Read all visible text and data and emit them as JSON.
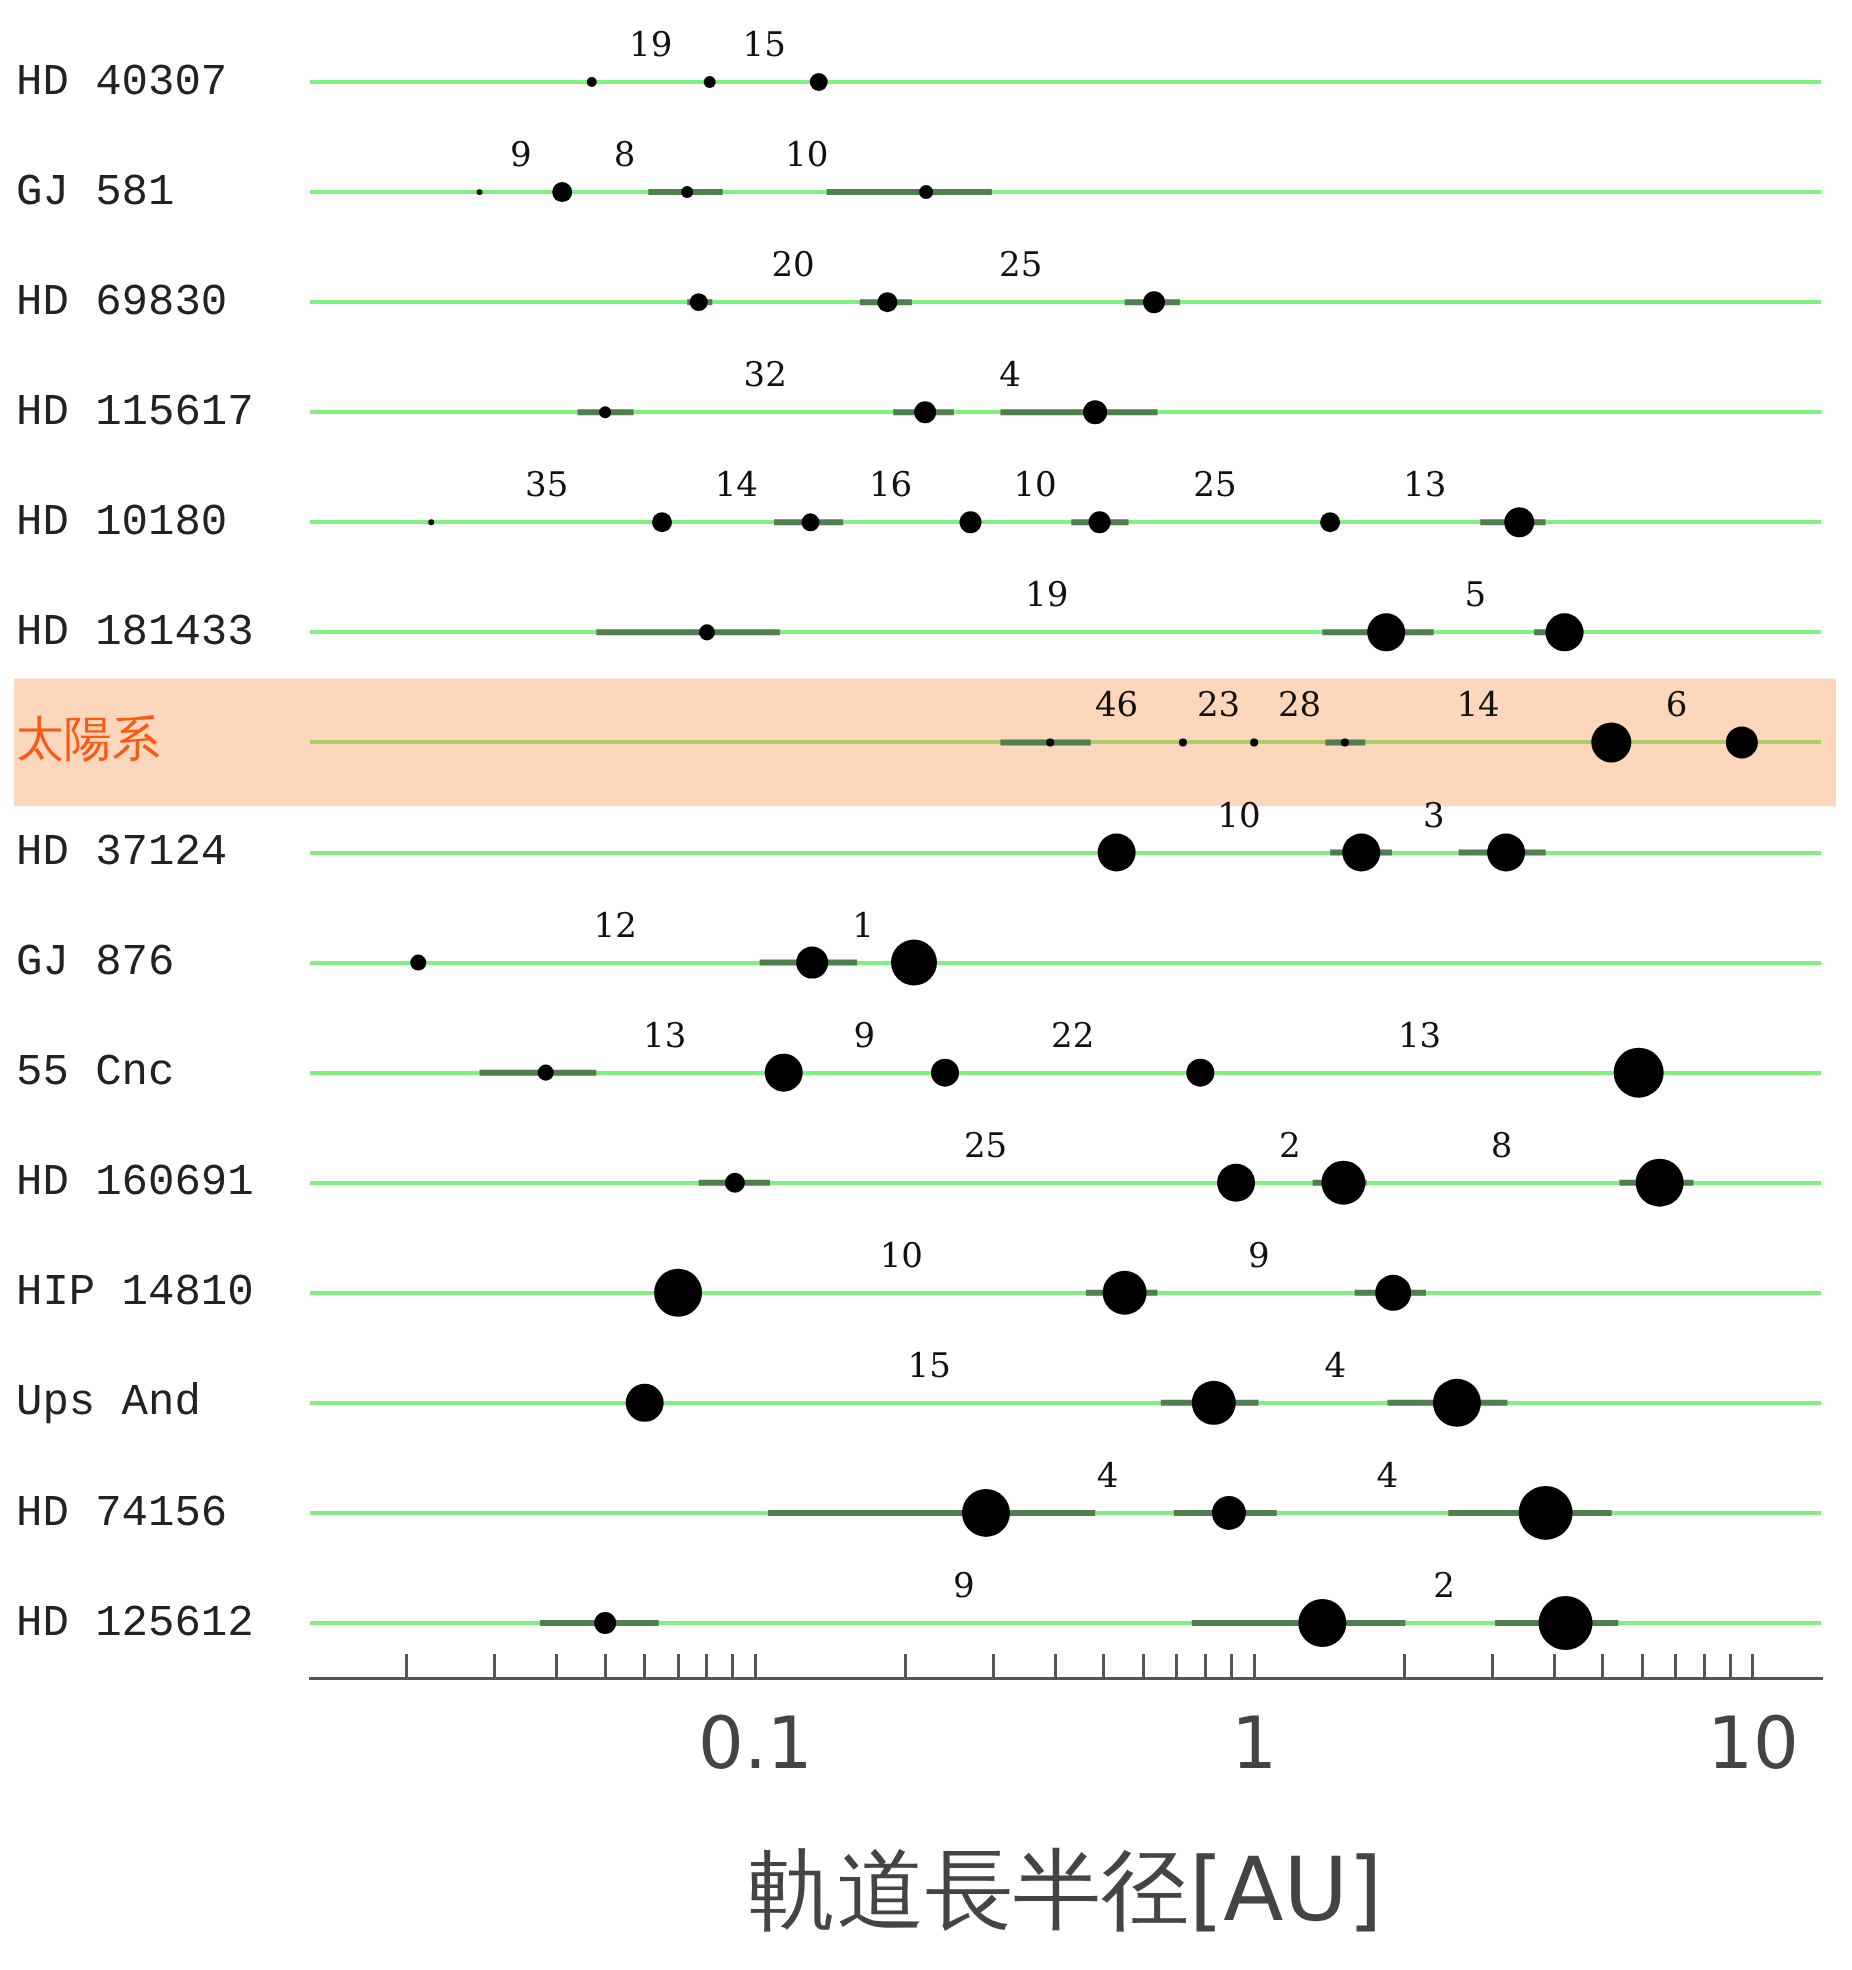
{
  "chart_data": {
    "type": "bubble",
    "orientation": "horizontal",
    "xlabel": "軌道長半径[AU]",
    "log": "x",
    "grid": "y",
    "categories": [
      "HD 40307",
      "GJ 581",
      "HD 69830",
      "HD 115617",
      "HD 10180",
      "HD 181433",
      "太陽系",
      "HD 37124",
      "GJ 876",
      "55 Cnc",
      "HD 160691",
      "HIP 14810",
      "Ups And",
      "HD 74156",
      "HD 125612"
    ],
    "xlim": [
      0.0128,
      13.7
    ],
    "xticks": [
      {
        "value": 0.02,
        "label": null
      },
      {
        "value": 0.03,
        "label": null
      },
      {
        "value": 0.04,
        "label": null
      },
      {
        "value": 0.05,
        "label": null
      },
      {
        "value": 0.06,
        "label": null
      },
      {
        "value": 0.07,
        "label": null
      },
      {
        "value": 0.08,
        "label": null
      },
      {
        "value": 0.09,
        "label": null
      },
      0.1,
      {
        "value": 0.2,
        "label": null
      },
      {
        "value": 0.3,
        "label": null
      },
      {
        "value": 0.4,
        "label": null
      },
      {
        "value": 0.5,
        "label": null
      },
      {
        "value": 0.6,
        "label": null
      },
      {
        "value": 0.7,
        "label": null
      },
      {
        "value": 0.8,
        "label": null
      },
      {
        "value": 0.9,
        "label": null
      },
      1,
      {
        "value": 2,
        "label": null
      },
      {
        "value": 3,
        "label": null
      },
      {
        "value": 4,
        "label": null
      },
      {
        "value": 5,
        "label": null
      },
      {
        "value": 6,
        "label": null
      },
      {
        "value": 7,
        "label": null
      },
      {
        "value": 8,
        "label": null
      },
      {
        "value": 9,
        "label": null
      },
      10
    ],
    "series": [
      {
        "color": "#000000",
        "values": [
          0.047,
          0.028,
          0.077,
          0.05,
          0.0224,
          0.08,
          0.39,
          0.53,
          0.0211,
          0.038,
          0.091,
          0.07,
          0.06,
          0.29,
          0.05
        ],
        "sizes": [
          0.034,
          0.012,
          0.11,
          0.049,
          0.012,
          0.088,
          0.022,
          0.495,
          0.088,
          0.088,
          0.137,
          0.79,
          0.495,
          0.79,
          0.166
        ],
        "errors": [
          null,
          null,
          [
            0.073,
            0.082
          ],
          [
            0.044,
            0.057
          ],
          null,
          [
            0.048,
            0.112
          ],
          [
            0.31,
            0.47
          ],
          null,
          null,
          [
            0.028,
            0.048
          ],
          [
            0.077,
            0.107
          ],
          null,
          null,
          [
            0.106,
            0.48
          ],
          [
            0.037,
            0.064
          ]
        ]
      },
      {
        "color": "#000000",
        "values": [
          0.081,
          0.041,
          0.184,
          0.219,
          0.065,
          1.84,
          0.72,
          1.64,
          0.13,
          0.114,
          0.92,
          0.55,
          0.83,
          0.89,
          1.37
        ],
        "sizes": [
          0.049,
          0.137,
          0.137,
          0.166,
          0.137,
          0.495,
          0.022,
          0.495,
          0.351,
          0.495,
          0.495,
          0.664,
          0.664,
          0.396,
          0.79
        ],
        "errors": [
          null,
          null,
          [
            0.162,
            0.206
          ],
          [
            0.189,
            0.25
          ],
          null,
          [
            1.37,
            2.29
          ],
          null,
          [
            1.42,
            1.89
          ],
          [
            0.102,
            0.16
          ],
          null,
          null,
          [
            0.46,
            0.64
          ],
          [
            0.65,
            1.02
          ],
          [
            0.69,
            1.11
          ],
          [
            0.75,
            2.01
          ]
        ]
      },
      {
        "color": "#000000",
        "values": [
          0.134,
          0.073,
          0.63,
          0.48,
          0.129,
          4.19,
          1,
          3.2,
          0.208,
          0.24,
          1.51,
          1.9,
          2.55,
          3.84,
          4.21
        ],
        "sizes": [
          0.11,
          0.049,
          0.166,
          0.198,
          0.11,
          0.495,
          0.022,
          0.495,
          0.726,
          0.269,
          0.664,
          0.444,
          0.79,
          1,
          1
        ],
        "errors": [
          null,
          [
            0.061,
            0.086
          ],
          [
            0.55,
            0.71
          ],
          [
            0.31,
            0.64
          ],
          [
            0.109,
            0.15
          ],
          [
            3.64,
            4.57
          ],
          null,
          [
            2.57,
            3.84
          ],
          null,
          null,
          [
            1.31,
            1.68
          ],
          [
            1.59,
            2.21
          ],
          [
            1.85,
            3.22
          ],
          [
            2.45,
            5.21
          ],
          [
            3.04,
            5.37
          ]
        ]
      },
      {
        "color": "#000000",
        "values": [
          null,
          0.22,
          null,
          null,
          0.27,
          null,
          1.52,
          null,
          null,
          0.78,
          6.5,
          null,
          null,
          null,
          null
        ],
        "sizes": [
          null,
          0.067,
          null,
          null,
          0.166,
          null,
          0.022,
          null,
          null,
          0.269,
          0.79,
          null,
          null,
          null,
          null
        ],
        "errors": [
          null,
          [
            0.139,
            0.298
          ],
          null,
          null,
          null,
          null,
          [
            1.39,
            1.67
          ],
          null,
          null,
          null,
          [
            5.4,
            7.6
          ],
          null,
          null,
          null,
          null
        ]
      },
      {
        "color": "#000000",
        "values": [
          null,
          null,
          null,
          null,
          0.49,
          null,
          5.2,
          null,
          null,
          5.9,
          null,
          null,
          null,
          null,
          null
        ],
        "sizes": [
          null,
          null,
          null,
          null,
          0.166,
          null,
          0.549,
          null,
          null,
          0.857,
          null,
          null,
          null,
          null,
          null
        ],
        "errors": [
          null,
          null,
          null,
          null,
          [
            0.43,
            0.56
          ],
          null,
          null,
          null,
          null,
          null,
          null,
          null,
          null,
          null,
          null
        ]
      },
      {
        "color": "#000000",
        "values": [
          null,
          null,
          null,
          null,
          1.42,
          null,
          9.5,
          null,
          null,
          null,
          null,
          null,
          null,
          null,
          null
        ],
        "sizes": [
          null,
          null,
          null,
          null,
          0.137,
          null,
          0.351,
          null,
          null,
          null,
          null,
          null,
          null,
          null,
          null
        ]
      },
      {
        "color": "#000000",
        "values": [
          null,
          null,
          null,
          null,
          3.4,
          null,
          null,
          null,
          null,
          null,
          null,
          null,
          null,
          null,
          null
        ],
        "sizes": [
          null,
          null,
          null,
          null,
          0.309,
          null,
          null,
          null,
          null,
          null,
          null,
          null,
          null,
          null,
          null
        ],
        "errors": [
          null,
          null,
          null,
          null,
          [
            2.84,
            3.84
          ],
          null,
          null,
          null,
          null,
          null,
          null,
          null,
          null,
          null,
          null
        ]
      }
    ],
    "bands": [
      {
        "axis": "y",
        "from": "太陽系",
        "to": "太陽系",
        "color": "#f58c3c"
      }
    ],
    "annotations": [
      "19",
      "15",
      "9",
      "8",
      "10",
      "20",
      "25",
      "32",
      "4",
      "35",
      "14",
      "16",
      "10",
      "25",
      "13",
      "19",
      "5",
      "46",
      "23",
      "28",
      "14",
      "6",
      "10",
      "3",
      "12",
      "1",
      "13",
      "9",
      "22",
      "13",
      "25",
      "2",
      "8",
      "10",
      "9",
      "15",
      "4",
      "4",
      "4",
      "9",
      "2"
    ]
  }
}
